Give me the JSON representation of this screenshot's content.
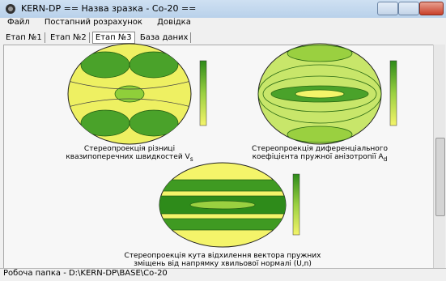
{
  "window": {
    "title": "KERN-DP == Назва зразка - Co-20 =="
  },
  "menu": [
    "Файл",
    "Постапний розрахунок",
    "Довідка"
  ],
  "tabs": [
    "Етап №1",
    "Етап №2",
    "Етап №3",
    "База даних"
  ],
  "plots": [
    {
      "caption": [
        "Стереопроекція різниці",
        "квазипоперечних швидкостей V"
      ],
      "subscript": "s"
    },
    {
      "caption": [
        "Стереопроекція диференціального",
        "коефіцієнта пружної анізотропії A"
      ],
      "subscript": "d"
    },
    {
      "caption": [
        "Стереопроекція кута відхилення вектора пружних",
        "зміщень від напрямку хвильової нормалі (U,n)"
      ]
    }
  ],
  "status": "Робоча папка - D:\\KERN-DP\\BASE\\Co-20"
}
